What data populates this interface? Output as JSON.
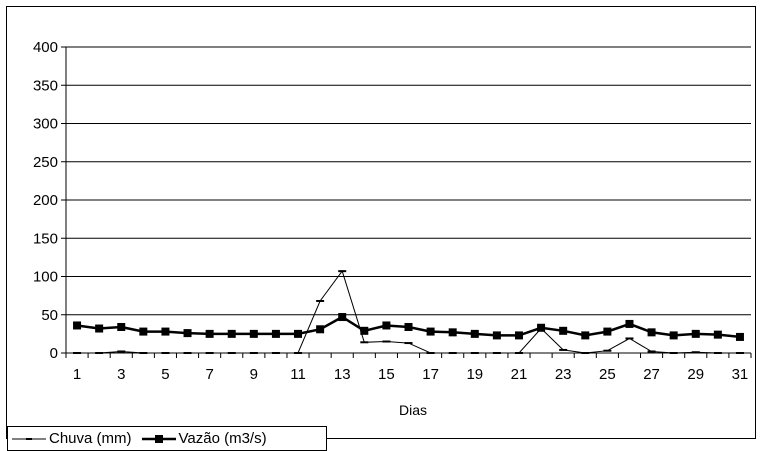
{
  "chart_data": {
    "type": "line",
    "title": "",
    "xlabel": "Dias",
    "ylabel": "",
    "ylim": [
      0,
      400
    ],
    "yticks": [
      0,
      50,
      100,
      150,
      200,
      250,
      300,
      350,
      400
    ],
    "x": [
      1,
      2,
      3,
      4,
      5,
      6,
      7,
      8,
      9,
      10,
      11,
      12,
      13,
      14,
      15,
      16,
      17,
      18,
      19,
      20,
      21,
      22,
      23,
      24,
      25,
      26,
      27,
      28,
      29,
      30,
      31
    ],
    "xtick_labels": [
      "1",
      "3",
      "5",
      "7",
      "9",
      "11",
      "13",
      "15",
      "17",
      "19",
      "21",
      "23",
      "25",
      "27",
      "29",
      "31"
    ],
    "grid": "horizontal",
    "legend_position": "bottom-left",
    "series": [
      {
        "name": "Chuva (mm)",
        "color": "#000000",
        "marker": "dash",
        "values": [
          0,
          0,
          2,
          0,
          0,
          0,
          0,
          0,
          0,
          0,
          0,
          68,
          107,
          14,
          15,
          13,
          0,
          0,
          0,
          0,
          0,
          32,
          4,
          0,
          3,
          19,
          2,
          0,
          1,
          0,
          0
        ]
      },
      {
        "name": "Vazão (m3/s)",
        "color": "#000000",
        "marker": "square",
        "values": [
          36,
          32,
          34,
          28,
          28,
          26,
          25,
          25,
          25,
          25,
          25,
          31,
          47,
          29,
          36,
          34,
          28,
          27,
          25,
          23,
          23,
          33,
          29,
          23,
          28,
          38,
          27,
          23,
          25,
          24,
          21
        ]
      }
    ]
  }
}
